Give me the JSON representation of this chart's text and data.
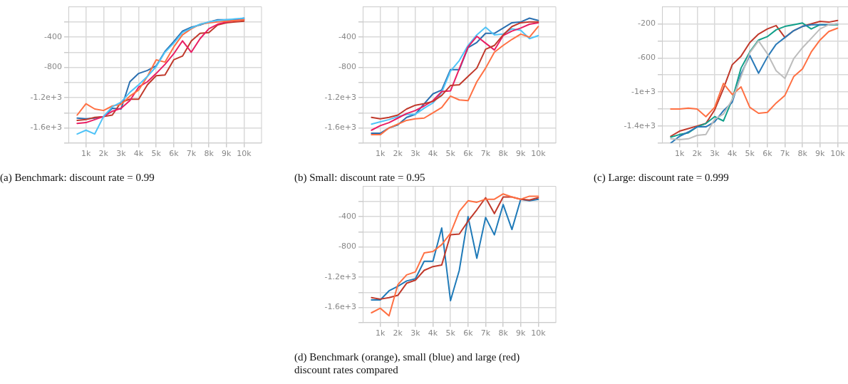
{
  "chart_data": [
    {
      "type": "line",
      "title": "(a) Benchmark: discount rate = 0.99",
      "grid": true,
      "x": [
        500,
        1000,
        1500,
        2000,
        2500,
        3000,
        3500,
        4000,
        4500,
        5000,
        5500,
        6000,
        6500,
        7000,
        7500,
        8000,
        8500,
        9000,
        9500,
        10000
      ],
      "xlim": [
        0,
        11000
      ],
      "ylim": [
        -1800,
        0
      ],
      "xticks": [
        {
          "value": 1000,
          "label": "1k"
        },
        {
          "value": 2000,
          "label": "2k"
        },
        {
          "value": 3000,
          "label": "3k"
        },
        {
          "value": 4000,
          "label": "4k"
        },
        {
          "value": 5000,
          "label": "5k"
        },
        {
          "value": 6000,
          "label": "6k"
        },
        {
          "value": 7000,
          "label": "7k"
        },
        {
          "value": 8000,
          "label": "8k"
        },
        {
          "value": 9000,
          "label": "9k"
        },
        {
          "value": 10000,
          "label": "10k"
        }
      ],
      "yticks": [
        {
          "value": -1800,
          "label": null
        },
        {
          "value": -1600,
          "label": "-1.6e+3"
        },
        {
          "value": -1400,
          "label": null
        },
        {
          "value": -1200,
          "label": "-1.2e+3"
        },
        {
          "value": -1000,
          "label": null
        },
        {
          "value": -800,
          "label": "-800"
        },
        {
          "value": -600,
          "label": null
        },
        {
          "value": -400,
          "label": "-400"
        },
        {
          "value": -200,
          "label": null
        }
      ],
      "series": [
        {
          "color": "#4fc3f7",
          "values": [
            -1680,
            -1630,
            -1680,
            -1450,
            -1320,
            -1260,
            -1130,
            -1030,
            -920,
            -790,
            -600,
            -480,
            -340,
            -280,
            -230,
            -200,
            -180,
            -170,
            -160,
            -150
          ]
        },
        {
          "color": "#ff7043",
          "values": [
            -1430,
            -1280,
            -1350,
            -1370,
            -1310,
            -1290,
            -1180,
            -1100,
            -920,
            -700,
            -730,
            -530,
            -370,
            -290,
            -230,
            -210,
            -200,
            -190,
            -180,
            -170
          ]
        },
        {
          "color": "#e91e63",
          "values": [
            -1540,
            -1530,
            -1490,
            -1450,
            -1380,
            -1340,
            -1240,
            -1060,
            -990,
            -880,
            -760,
            -620,
            -450,
            -600,
            -420,
            -290,
            -230,
            -200,
            -180,
            -170
          ]
        },
        {
          "color": "#c0392b",
          "values": [
            -1500,
            -1490,
            -1460,
            -1450,
            -1430,
            -1260,
            -1220,
            -1220,
            -1030,
            -910,
            -900,
            -700,
            -650,
            -450,
            -350,
            -340,
            -240,
            -210,
            -200,
            -190
          ]
        },
        {
          "color": "#2a6fb0",
          "values": [
            -1470,
            -1480,
            -1470,
            -1450,
            -1340,
            -1350,
            -990,
            -880,
            -840,
            -780,
            -590,
            -460,
            -320,
            -270,
            -240,
            -200,
            -170,
            -170,
            -170,
            -150
          ]
        }
      ]
    },
    {
      "type": "line",
      "title": "(b) Small: discount rate = 0.95",
      "grid": true,
      "x": [
        500,
        1000,
        1500,
        2000,
        2500,
        3000,
        3500,
        4000,
        4500,
        5000,
        5500,
        6000,
        6500,
        7000,
        7500,
        8000,
        8500,
        9000,
        9500,
        10000
      ],
      "xlim": [
        0,
        11000
      ],
      "ylim": [
        -1800,
        0
      ],
      "xticks": [
        {
          "value": 1000,
          "label": "1k"
        },
        {
          "value": 2000,
          "label": "2k"
        },
        {
          "value": 3000,
          "label": "3k"
        },
        {
          "value": 4000,
          "label": "4k"
        },
        {
          "value": 5000,
          "label": "5k"
        },
        {
          "value": 6000,
          "label": "6k"
        },
        {
          "value": 7000,
          "label": "7k"
        },
        {
          "value": 8000,
          "label": "8k"
        },
        {
          "value": 9000,
          "label": "9k"
        },
        {
          "value": 10000,
          "label": "10k"
        }
      ],
      "yticks": [
        {
          "value": -1800,
          "label": null
        },
        {
          "value": -1600,
          "label": "-1.6e+3"
        },
        {
          "value": -1400,
          "label": null
        },
        {
          "value": -1200,
          "label": "-1.2e+3"
        },
        {
          "value": -1000,
          "label": null
        },
        {
          "value": -800,
          "label": "-800"
        },
        {
          "value": -600,
          "label": null
        },
        {
          "value": -400,
          "label": "-400"
        },
        {
          "value": -200,
          "label": null
        }
      ],
      "series": [
        {
          "color": "#ff7043",
          "values": [
            -1690,
            -1690,
            -1600,
            -1550,
            -1500,
            -1480,
            -1470,
            -1400,
            -1330,
            -1180,
            -1230,
            -1240,
            -990,
            -810,
            -600,
            -510,
            -430,
            -360,
            -400,
            -260
          ]
        },
        {
          "color": "#c0392b",
          "values": [
            -1460,
            -1480,
            -1460,
            -1430,
            -1350,
            -1300,
            -1280,
            -1250,
            -1170,
            -1040,
            -1030,
            -920,
            -810,
            -560,
            -510,
            -370,
            -260,
            -210,
            -200,
            -200
          ]
        },
        {
          "color": "#e91e63",
          "values": [
            -1630,
            -1570,
            -1530,
            -1470,
            -1410,
            -1370,
            -1310,
            -1240,
            -1120,
            -1110,
            -820,
            -530,
            -390,
            -480,
            -570,
            -380,
            -320,
            -280,
            -230,
            -210
          ]
        },
        {
          "color": "#4fc3f7",
          "values": [
            -1550,
            -1520,
            -1490,
            -1450,
            -1420,
            -1420,
            -1340,
            -1270,
            -1130,
            -850,
            -710,
            -510,
            -370,
            -270,
            -370,
            -360,
            -290,
            -310,
            -420,
            -380
          ]
        },
        {
          "color": "#2a6fb0",
          "values": [
            -1670,
            -1670,
            -1600,
            -1560,
            -1460,
            -1420,
            -1280,
            -1150,
            -1100,
            -830,
            -830,
            -540,
            -470,
            -350,
            -350,
            -280,
            -210,
            -200,
            -150,
            -180
          ]
        }
      ]
    },
    {
      "type": "line",
      "title": "(c) Large: discount rate = 0.999",
      "grid": true,
      "x": [
        500,
        1000,
        1500,
        2000,
        2500,
        3000,
        3500,
        4000,
        4500,
        5000,
        5500,
        6000,
        6500,
        7000,
        7500,
        8000,
        8500,
        9000,
        9500,
        10000
      ],
      "xlim": [
        0,
        11000
      ],
      "ylim": [
        -1600,
        0
      ],
      "xticks": [
        {
          "value": 1000,
          "label": "1k"
        },
        {
          "value": 2000,
          "label": "2k"
        },
        {
          "value": 3000,
          "label": "3k"
        },
        {
          "value": 4000,
          "label": "4k"
        },
        {
          "value": 5000,
          "label": "5k"
        },
        {
          "value": 6000,
          "label": "6k"
        },
        {
          "value": 7000,
          "label": "7k"
        },
        {
          "value": 8000,
          "label": "8k"
        },
        {
          "value": 9000,
          "label": "9k"
        },
        {
          "value": 10000,
          "label": "10k"
        }
      ],
      "yticks": [
        {
          "value": -1600,
          "label": null
        },
        {
          "value": -1400,
          "label": "-1.4e+3"
        },
        {
          "value": -1200,
          "label": null
        },
        {
          "value": -1000,
          "label": "-1e+3"
        },
        {
          "value": -800,
          "label": null
        },
        {
          "value": -600,
          "label": "-600"
        },
        {
          "value": -400,
          "label": null
        },
        {
          "value": -200,
          "label": "-200"
        }
      ],
      "series": [
        {
          "color": "#bdbdbd",
          "values": [
            -1550,
            -1560,
            -1550,
            -1510,
            -1500,
            -1320,
            -1260,
            -1090,
            -820,
            -540,
            -400,
            -550,
            -750,
            -840,
            -610,
            -480,
            -370,
            -260,
            -210,
            -200
          ]
        },
        {
          "color": "#ff7043",
          "values": [
            -1200,
            -1200,
            -1190,
            -1200,
            -1290,
            -1180,
            -900,
            -1030,
            -940,
            -1180,
            -1250,
            -1240,
            -1130,
            -1040,
            -820,
            -730,
            -530,
            -390,
            -290,
            -250
          ]
        },
        {
          "color": "#2a7ab8",
          "values": [
            -1600,
            -1520,
            -1470,
            -1410,
            -1410,
            -1350,
            -1220,
            -1120,
            -790,
            -570,
            -780,
            -590,
            -440,
            -360,
            -280,
            -230,
            -210,
            -210,
            -210,
            -200
          ]
        },
        {
          "color": "#12a08a",
          "values": [
            -1530,
            -1500,
            -1480,
            -1410,
            -1370,
            -1290,
            -1340,
            -1090,
            -720,
            -530,
            -390,
            -350,
            -270,
            -230,
            -210,
            -190,
            -260,
            -210,
            -210,
            -210
          ]
        },
        {
          "color": "#c0392b",
          "values": [
            -1520,
            -1460,
            -1430,
            -1400,
            -1370,
            -1210,
            -960,
            -680,
            -580,
            -420,
            -320,
            -260,
            -220,
            -360,
            -280,
            -230,
            -200,
            -170,
            -180,
            -160
          ]
        }
      ]
    },
    {
      "type": "line",
      "title": "(d) Benchmark (orange), small (blue) and large (red) discount rates compared",
      "grid": true,
      "x": [
        500,
        1000,
        1500,
        2000,
        2500,
        3000,
        3500,
        4000,
        4500,
        5000,
        5500,
        6000,
        6500,
        7000,
        7500,
        8000,
        8500,
        9000,
        9500,
        10000
      ],
      "xlim": [
        0,
        11000
      ],
      "ylim": [
        -1800,
        0
      ],
      "xticks": [
        {
          "value": 1000,
          "label": "1k"
        },
        {
          "value": 2000,
          "label": "2k"
        },
        {
          "value": 3000,
          "label": "3k"
        },
        {
          "value": 4000,
          "label": "4k"
        },
        {
          "value": 5000,
          "label": "5k"
        },
        {
          "value": 6000,
          "label": "6k"
        },
        {
          "value": 7000,
          "label": "7k"
        },
        {
          "value": 8000,
          "label": "8k"
        },
        {
          "value": 9000,
          "label": "9k"
        },
        {
          "value": 10000,
          "label": "10k"
        }
      ],
      "yticks": [
        {
          "value": -1800,
          "label": null
        },
        {
          "value": -1600,
          "label": "-1.6e+3"
        },
        {
          "value": -1400,
          "label": null
        },
        {
          "value": -1200,
          "label": "-1.2e+3"
        },
        {
          "value": -1000,
          "label": null
        },
        {
          "value": -800,
          "label": "-800"
        },
        {
          "value": -600,
          "label": null
        },
        {
          "value": -400,
          "label": "-400"
        },
        {
          "value": -200,
          "label": null
        }
      ],
      "series": [
        {
          "color": "#ff7043",
          "values": [
            -1670,
            -1610,
            -1710,
            -1300,
            -1170,
            -1130,
            -880,
            -860,
            -770,
            -620,
            -330,
            -190,
            -210,
            -170,
            -170,
            -100,
            -140,
            -170,
            -130,
            -130
          ]
        },
        {
          "color": "#c0392b",
          "values": [
            -1470,
            -1490,
            -1470,
            -1440,
            -1280,
            -1240,
            -1110,
            -1060,
            -1040,
            -640,
            -630,
            -460,
            -310,
            -150,
            -360,
            -140,
            -140,
            -170,
            -180,
            -150
          ]
        },
        {
          "color": "#1f7ab8",
          "values": [
            -1500,
            -1500,
            -1380,
            -1320,
            -1250,
            -1220,
            -990,
            -990,
            -550,
            -1510,
            -1110,
            -400,
            -950,
            -410,
            -640,
            -240,
            -570,
            -170,
            -190,
            -170
          ]
        }
      ]
    }
  ]
}
